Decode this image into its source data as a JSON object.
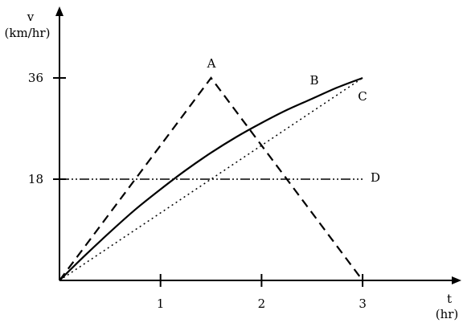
{
  "chart_data": {
    "type": "line",
    "xlabel": "t",
    "xunit": "(hr)",
    "ylabel": "v",
    "yunit": "(km/hr)",
    "xlim": [
      0,
      3.9
    ],
    "ylim": [
      0,
      48
    ],
    "xticks": [
      1,
      2,
      3
    ],
    "xtick_labels": [
      "1",
      "2",
      "3"
    ],
    "yticks": [
      18,
      36
    ],
    "ytick_labels": [
      "18",
      "36"
    ],
    "grid": false,
    "series": [
      {
        "name": "A",
        "style": "dashed",
        "x": [
          0,
          1.5,
          3
        ],
        "y": [
          0,
          36,
          0
        ]
      },
      {
        "name": "B",
        "style": "solid",
        "x": [
          0,
          0.25,
          0.5,
          0.75,
          1.0,
          1.25,
          1.5,
          1.75,
          2.0,
          2.25,
          2.5,
          2.75,
          3.0
        ],
        "y": [
          0,
          4.4,
          8.6,
          12.6,
          16.2,
          19.6,
          22.7,
          25.5,
          28.0,
          30.3,
          32.3,
          34.3,
          36
        ]
      },
      {
        "name": "C",
        "style": "dotted",
        "x": [
          0,
          3
        ],
        "y": [
          0,
          36
        ]
      },
      {
        "name": "D",
        "style": "dash-dot-dot",
        "x": [
          0,
          3
        ],
        "y": [
          18,
          18
        ]
      }
    ]
  }
}
